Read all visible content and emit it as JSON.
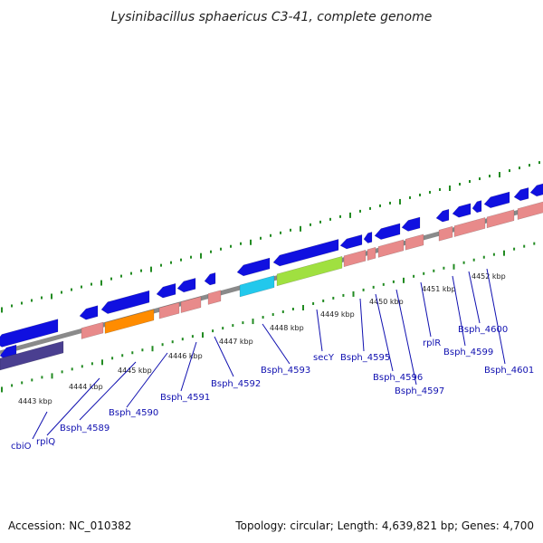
{
  "title": "Lysinibacillus sphaericus C3-41, complete genome",
  "accession": "Accession: NC_010382",
  "summary": "Topology: circular; Length: 4,639,821 bp; Genes: 4,700",
  "colors": {
    "backbone": "#8a8a8a",
    "tick": "#228b22",
    "cds": "#1010e0",
    "rrna_pink": "#e88a8a",
    "orange": "#ff8c00",
    "lime": "#a0e040",
    "cyan": "#22c8ec",
    "dark_purple": "#4a3f90",
    "label": "#1010b0"
  },
  "tick_labels": [
    "4443 kbp",
    "4444 kbp",
    "4445 kbp",
    "4446 kbp",
    "4447 kbp",
    "4448 kbp",
    "4449 kbp",
    "4450 kbp",
    "4451 kbp",
    "4452 kbp"
  ],
  "gene_labels": [
    "cbiO",
    "rplQ",
    "Bsph_4589",
    "Bsph_4590",
    "Bsph_4591",
    "Bsph_4592",
    "Bsph_4593",
    "secY",
    "Bsph_4595",
    "Bsph_4596",
    "Bsph_4597",
    "rplR",
    "Bsph_4599",
    "Bsph_4600",
    "Bsph_4601"
  ]
}
